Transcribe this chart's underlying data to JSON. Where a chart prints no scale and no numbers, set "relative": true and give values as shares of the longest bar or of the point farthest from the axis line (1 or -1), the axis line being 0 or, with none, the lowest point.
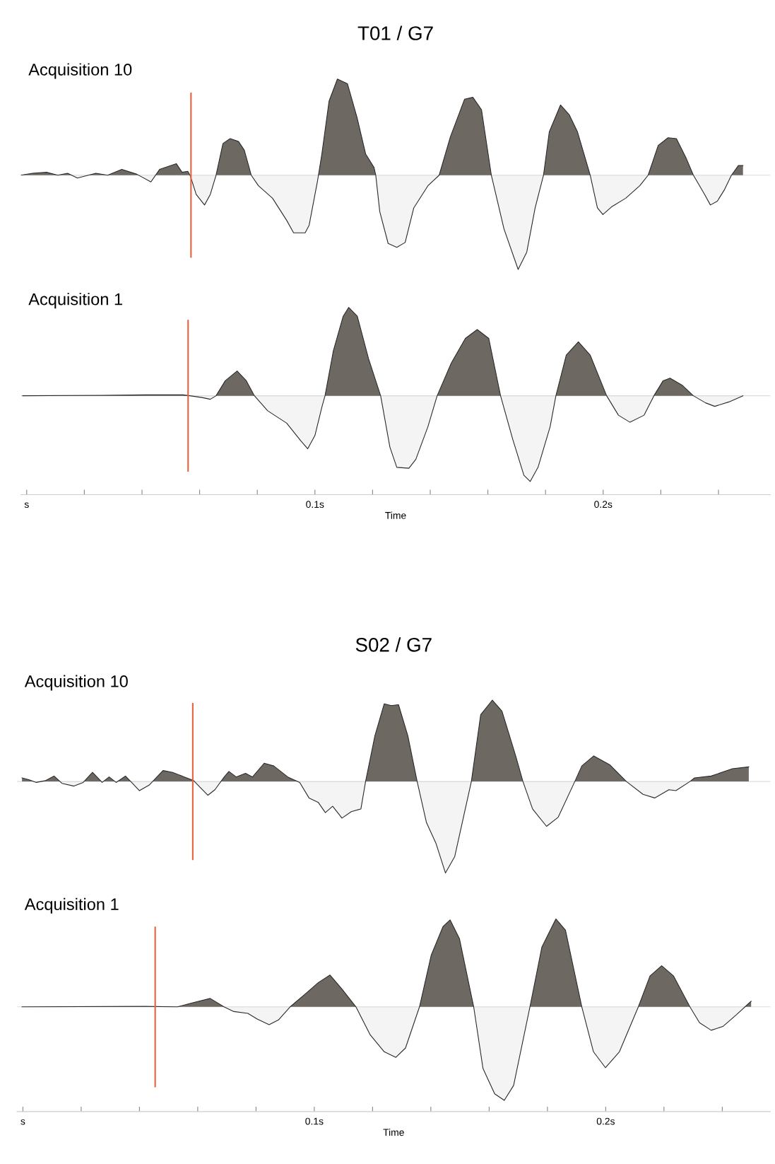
{
  "chart_data": [
    {
      "type": "area",
      "title": "T01 / G7",
      "annotations": [
        "Acquisition 10"
      ],
      "relative": true,
      "xlim": [
        -0.002,
        0.258
      ],
      "tick_labels": false,
      "ref_lines": [
        {
          "axis": "x",
          "value": 0.057,
          "color": "#e8603c"
        }
      ],
      "series": [
        {
          "color": "#6e6862",
          "x": [
            -0.002,
            0.002,
            0.0069,
            0.0108,
            0.0142,
            0.0176,
            0.024,
            0.0281,
            0.033,
            0.0382,
            0.0431,
            0.0461,
            0.0519,
            0.0539,
            0.0559,
            0.0568,
            0.0588,
            0.0617,
            0.0637,
            0.0657,
            0.0681,
            0.0706,
            0.0735,
            0.0755,
            0.0779,
            0.0804,
            0.0853,
            0.0902,
            0.0926,
            0.0966,
            0.098,
            0.1009,
            0.1024,
            0.1049,
            0.1078,
            0.1113,
            0.1147,
            0.1176,
            0.1205,
            0.1211,
            0.1225,
            0.1254,
            0.1284,
            0.1313,
            0.1343,
            0.1392,
            0.1431,
            0.147,
            0.1519,
            0.1548,
            0.1578,
            0.1612,
            0.1656,
            0.1705,
            0.1735,
            0.1764,
            0.1793,
            0.1813,
            0.1852,
            0.1882,
            0.1911,
            0.1955,
            0.198,
            0.1999,
            0.2029,
            0.2078,
            0.2127,
            0.2156,
            0.2191,
            0.2225,
            0.2254,
            0.2289,
            0.2313,
            0.2352,
            0.2372,
            0.2396,
            0.2421,
            0.2445,
            0.2469,
            0.2485
          ],
          "values": [
            0,
            0.02,
            0.03,
            0,
            0.02,
            -0.03,
            0.02,
            0,
            0.06,
            0.01,
            -0.07,
            0.06,
            0.12,
            0.03,
            0.04,
            -0.01,
            -0.2,
            -0.31,
            -0.2,
            0,
            0.33,
            0.38,
            0.35,
            0.26,
            0,
            -0.11,
            -0.24,
            -0.47,
            -0.6,
            -0.6,
            -0.52,
            -0.06,
            0.22,
            0.77,
            1,
            0.95,
            0.59,
            0.22,
            0.08,
            0,
            -0.38,
            -0.71,
            -0.75,
            -0.7,
            -0.34,
            -0.11,
            0,
            0.4,
            0.79,
            0.81,
            0.68,
            0,
            -0.56,
            -0.98,
            -0.8,
            -0.34,
            0,
            0.45,
            0.73,
            0.63,
            0.45,
            0,
            -0.34,
            -0.41,
            -0.33,
            -0.24,
            -0.11,
            0,
            0.31,
            0.39,
            0.38,
            0.17,
            0,
            -0.2,
            -0.31,
            -0.27,
            -0.15,
            0,
            0.1,
            0.1
          ]
        }
      ]
    },
    {
      "type": "area",
      "annotations": [
        "Acquisition 1"
      ],
      "xlabel": "Time",
      "relative": true,
      "xlim": [
        -0.002,
        0.258
      ],
      "xticks": [
        {
          "value": 0,
          "label": "s"
        },
        {
          "value": 0.02,
          "label": null
        },
        {
          "value": 0.04,
          "label": null
        },
        {
          "value": 0.06,
          "label": null
        },
        {
          "value": 0.08,
          "label": null
        },
        {
          "value": 0.1,
          "label": "0.1s"
        },
        {
          "value": 0.12,
          "label": null
        },
        {
          "value": 0.14,
          "label": null
        },
        {
          "value": 0.16,
          "label": null
        },
        {
          "value": 0.18,
          "label": null
        },
        {
          "value": 0.2,
          "label": "0.2s"
        },
        {
          "value": 0.22,
          "label": null
        },
        {
          "value": 0.24,
          "label": null
        }
      ],
      "ref_lines": [
        {
          "axis": "x",
          "value": 0.056,
          "color": "#e8603c"
        }
      ],
      "series": [
        {
          "color": "#6e6862",
          "x": [
            -0.0014,
            0.0265,
            0.0412,
            0.0542,
            0.0566,
            0.0608,
            0.0637,
            0.0657,
            0.0689,
            0.073,
            0.0762,
            0.079,
            0.0836,
            0.0902,
            0.0951,
            0.0975,
            0.1,
            0.1024,
            0.1035,
            0.1064,
            0.1098,
            0.1117,
            0.1147,
            0.1186,
            0.1228,
            0.126,
            0.1284,
            0.1326,
            0.135,
            0.1392,
            0.1424,
            0.1473,
            0.1522,
            0.1563,
            0.1603,
            0.1644,
            0.1686,
            0.1725,
            0.1747,
            0.1774,
            0.1816,
            0.1836,
            0.1872,
            0.1914,
            0.1955,
            0.2012,
            0.2053,
            0.2093,
            0.2142,
            0.2176,
            0.2208,
            0.2232,
            0.2274,
            0.2313,
            0.2355,
            0.2387,
            0.2436,
            0.2485
          ],
          "values": [
            0,
            0.005,
            0.01,
            0.01,
            0,
            -0.02,
            -0.04,
            0,
            0.17,
            0.28,
            0.17,
            0,
            -0.17,
            -0.31,
            -0.51,
            -0.6,
            -0.45,
            -0.13,
            0,
            0.51,
            0.9,
            1,
            0.9,
            0.42,
            0,
            -0.58,
            -0.81,
            -0.82,
            -0.72,
            -0.35,
            0,
            0.37,
            0.65,
            0.75,
            0.65,
            0,
            -0.49,
            -0.9,
            -0.97,
            -0.81,
            -0.35,
            0,
            0.46,
            0.61,
            0.46,
            0,
            -0.22,
            -0.3,
            -0.22,
            0,
            0.17,
            0.2,
            0.12,
            0,
            -0.08,
            -0.12,
            -0.07,
            0
          ]
        }
      ]
    },
    {
      "type": "area",
      "title": "S02 / G7",
      "annotations": [
        "Acquisition 10"
      ],
      "relative": true,
      "xlim": [
        -0.002,
        0.2565
      ],
      "tick_labels": false,
      "ref_lines": [
        {
          "axis": "x",
          "value": 0.0583,
          "color": "#e8603c"
        }
      ],
      "series": [
        {
          "color": "#6e6862",
          "x": [
            -0.0003,
            0.002,
            0.0046,
            0.0078,
            0.0107,
            0.0134,
            0.0175,
            0.0207,
            0.0239,
            0.0272,
            0.0296,
            0.032,
            0.0352,
            0.0376,
            0.04,
            0.0433,
            0.0481,
            0.0514,
            0.0554,
            0.0586,
            0.061,
            0.0635,
            0.0659,
            0.0691,
            0.0707,
            0.0732,
            0.0764,
            0.0788,
            0.0828,
            0.0861,
            0.0909,
            0.095,
            0.0982,
            0.1014,
            0.1038,
            0.1063,
            0.1095,
            0.1127,
            0.116,
            0.1176,
            0.1208,
            0.124,
            0.1264,
            0.1289,
            0.1321,
            0.1353,
            0.1385,
            0.1418,
            0.145,
            0.1482,
            0.1539,
            0.1571,
            0.1611,
            0.1644,
            0.1692,
            0.1716,
            0.1749,
            0.1797,
            0.1837,
            0.1894,
            0.1918,
            0.1959,
            0.2015,
            0.2071,
            0.2128,
            0.2168,
            0.2217,
            0.2241,
            0.2289,
            0.2305,
            0.2362,
            0.2435,
            0.2491
          ],
          "values": [
            0.04,
            0.02,
            -0.01,
            0.01,
            0.06,
            -0.02,
            -0.05,
            -0.01,
            0.1,
            -0.01,
            0.05,
            -0.01,
            0.06,
            -0.02,
            -0.1,
            -0.04,
            0.12,
            0.1,
            0.05,
            0.01,
            -0.07,
            -0.15,
            -0.09,
            0.05,
            0.11,
            0.05,
            0.09,
            0.05,
            0.2,
            0.17,
            0.05,
            -0.01,
            -0.18,
            -0.23,
            -0.34,
            -0.27,
            -0.4,
            -0.33,
            -0.3,
            0,
            0.5,
            0.85,
            0.83,
            0.84,
            0.5,
            0,
            -0.45,
            -0.68,
            -1,
            -0.82,
            0,
            0.73,
            0.89,
            0.77,
            0.27,
            0,
            -0.3,
            -0.49,
            -0.39,
            0,
            0.17,
            0.28,
            0.18,
            0,
            -0.14,
            -0.18,
            -0.09,
            -0.1,
            0,
            0.04,
            0.06,
            0.14,
            0.16
          ]
        }
      ]
    },
    {
      "type": "area",
      "annotations": [
        "Acquisition 1"
      ],
      "xlabel": "Time",
      "relative": true,
      "xlim": [
        -0.002,
        0.2565
      ],
      "xticks": [
        {
          "value": 0,
          "label": "s"
        },
        {
          "value": 0.02,
          "label": null
        },
        {
          "value": 0.04,
          "label": null
        },
        {
          "value": 0.06,
          "label": null
        },
        {
          "value": 0.08,
          "label": null
        },
        {
          "value": 0.1,
          "label": "0.1s"
        },
        {
          "value": 0.12,
          "label": null
        },
        {
          "value": 0.14,
          "label": null
        },
        {
          "value": 0.16,
          "label": null
        },
        {
          "value": 0.18,
          "label": null
        },
        {
          "value": 0.2,
          "label": "0.2s"
        },
        {
          "value": 0.22,
          "label": null
        },
        {
          "value": 0.24,
          "label": null
        }
      ],
      "ref_lines": [
        {
          "axis": "x",
          "value": 0.0454,
          "color": "#e8603c"
        }
      ],
      "series": [
        {
          "color": "#6e6862",
          "x": [
            -0.0003,
            0.0417,
            0.053,
            0.0578,
            0.0643,
            0.069,
            0.0724,
            0.0772,
            0.0804,
            0.0845,
            0.0877,
            0.0917,
            0.0966,
            0.1014,
            0.1054,
            0.1095,
            0.1143,
            0.1192,
            0.124,
            0.128,
            0.1313,
            0.1361,
            0.1401,
            0.1442,
            0.1466,
            0.1498,
            0.1547,
            0.1579,
            0.1619,
            0.1652,
            0.1684,
            0.174,
            0.1781,
            0.1829,
            0.1862,
            0.1918,
            0.1958,
            0.1999,
            0.2047,
            0.2112,
            0.2152,
            0.2192,
            0.2233,
            0.2289,
            0.2322,
            0.2362,
            0.2402,
            0.245,
            0.2499
          ],
          "values": [
            0,
            0.005,
            0,
            0.04,
            0.09,
            0,
            -0.05,
            -0.07,
            -0.13,
            -0.19,
            -0.14,
            0,
            0.13,
            0.26,
            0.34,
            0.19,
            0,
            -0.3,
            -0.48,
            -0.54,
            -0.44,
            0,
            0.55,
            0.86,
            0.93,
            0.73,
            0,
            -0.66,
            -0.93,
            -1,
            -0.84,
            0,
            0.64,
            0.94,
            0.82,
            0,
            -0.48,
            -0.65,
            -0.48,
            0,
            0.33,
            0.44,
            0.33,
            0,
            -0.17,
            -0.25,
            -0.21,
            -0.08,
            0.06
          ]
        }
      ]
    }
  ]
}
